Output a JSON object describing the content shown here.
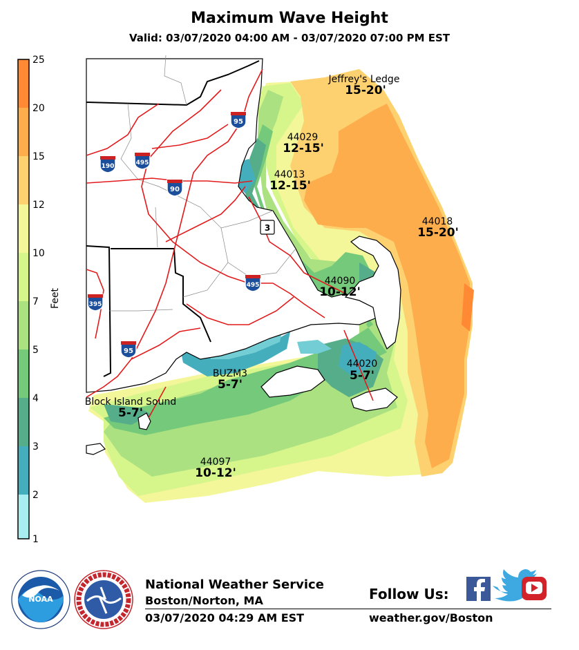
{
  "header": {
    "title": "Maximum Wave Height",
    "subtitle": "Valid: 03/07/2020 04:00 AM - 03/07/2020 07:00 PM EST"
  },
  "colorbar": {
    "units": "Feet",
    "ticks": [
      "25",
      "20",
      "15",
      "12",
      "10",
      "7",
      "5",
      "4",
      "3",
      "2",
      "1"
    ],
    "colors": [
      "#ff8a33",
      "#fdad4b",
      "#fdd170",
      "#f3f79a",
      "#d6f58b",
      "#abe181",
      "#74c97a",
      "#55ad8a",
      "#44aebd",
      "#72cdd5",
      "#a8eef1"
    ]
  },
  "map": {
    "colors": {
      "land": "#ffffff",
      "coast": "#000000",
      "roads": "#e31a1c",
      "counties": "#888888",
      "state_border": "#000000"
    },
    "zones": [
      {
        "name": "Jeffrey's Ledge",
        "value": "15-20'"
      },
      {
        "name": "44029",
        "value": "12-15'"
      },
      {
        "name": "44013",
        "value": "12-15'"
      },
      {
        "name": "44018",
        "value": "15-20'"
      },
      {
        "name": "44090",
        "value": "10-12'"
      },
      {
        "name": "44020",
        "value": "5-7'"
      },
      {
        "name": "BUZM3",
        "value": "5-7'"
      },
      {
        "name": "Block Island Sound",
        "value": "5-7'"
      },
      {
        "name": "44097",
        "value": "10-12'"
      }
    ],
    "shields": {
      "interstates": [
        "95",
        "190",
        "495",
        "90",
        "395",
        "495",
        "95"
      ],
      "state_route": "3"
    }
  },
  "footer": {
    "org": "National Weather Service",
    "office": "Boston/Norton, MA",
    "issued": "03/07/2020 04:29 AM EST",
    "follow": "Follow Us:",
    "website": "weather.gov/Boston"
  }
}
